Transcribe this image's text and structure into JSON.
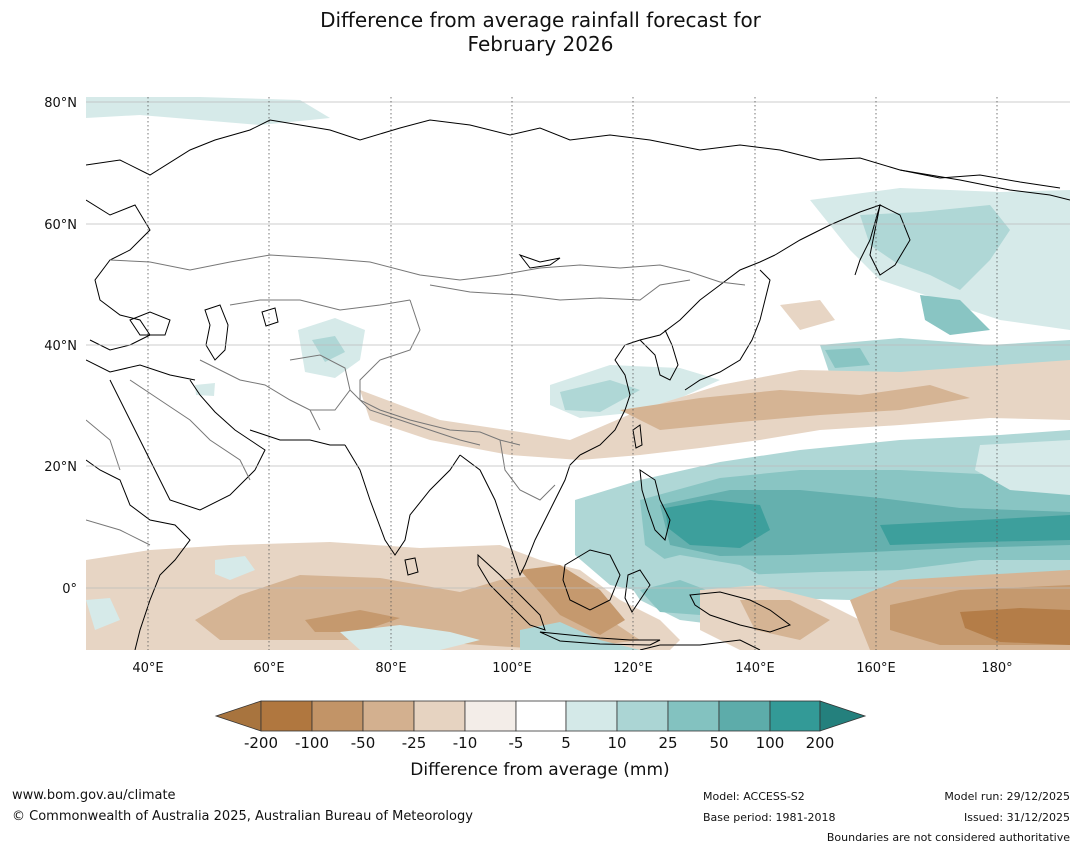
{
  "title": {
    "line1": "Difference from average rainfall forecast for",
    "line2": "February 2026"
  },
  "map": {
    "lat_labels": [
      "80°N",
      "60°N",
      "40°N",
      "20°N",
      "0°"
    ],
    "lon_labels": [
      "40°E",
      "60°E",
      "80°E",
      "100°E",
      "120°E",
      "140°E",
      "160°E",
      "180°"
    ]
  },
  "legend": {
    "title": "Difference from average (mm)",
    "ticks": [
      "-200",
      "-100",
      "-50",
      "-25",
      "-10",
      "-5",
      "5",
      "10",
      "25",
      "50",
      "100",
      "200"
    ],
    "colors": [
      "#a8743e",
      "#b0773f",
      "#c29467",
      "#d3b08f",
      "#e6d3c1",
      "#f3ede8",
      "#ffffff",
      "#d4e9e8",
      "#abd5d4",
      "#83c2c0",
      "#5dacaa",
      "#339a97",
      "#24807d"
    ]
  },
  "footer": {
    "website": "www.bom.gov.au/climate",
    "copyright": "© Commonwealth of Australia 2025, Australian Bureau of Meteorology",
    "model": "Model: ACCESS-S2",
    "base_period": "Base period: 1981-2018",
    "model_run": "Model run: 29/12/2025",
    "issued": "Issued: 31/12/2025",
    "disclaimer": "Boundaries are not considered authoritative"
  }
}
